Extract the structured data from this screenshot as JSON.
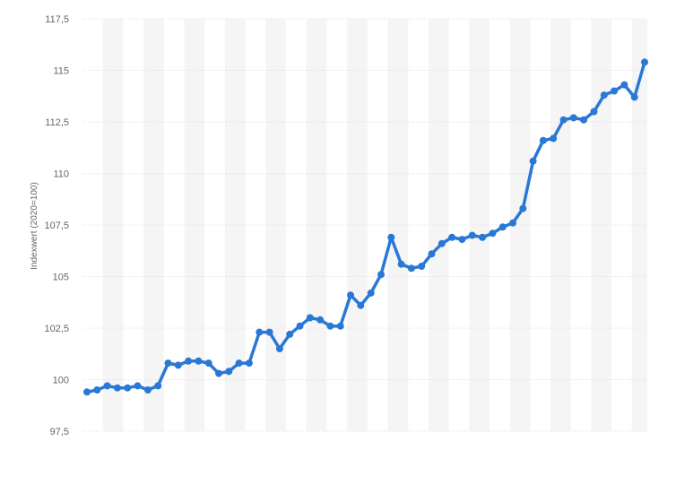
{
  "chart_data": {
    "type": "line",
    "title": "",
    "xlabel": "",
    "ylabel": "Indexwert (2020=100)",
    "ylim": [
      97.5,
      117.5
    ],
    "y_ticks": [
      "117,5",
      "115",
      "112,5",
      "110",
      "107,5",
      "105",
      "102,5",
      "100",
      "97,5"
    ],
    "y_tick_values": [
      117.5,
      115,
      112.5,
      110,
      107.5,
      105,
      102.5,
      100,
      97.5
    ],
    "grid": true,
    "legend": "none",
    "series": [
      {
        "values": [
          99.4,
          99.5,
          99.7,
          99.6,
          99.6,
          99.7,
          99.5,
          99.7,
          100.8,
          100.7,
          100.9,
          100.9,
          100.8,
          100.3,
          100.4,
          100.8,
          100.8,
          102.3,
          102.3,
          101.5,
          102.2,
          102.6,
          103.0,
          102.9,
          102.6,
          102.6,
          104.1,
          103.6,
          104.2,
          105.1,
          106.9,
          105.6,
          105.4,
          105.5,
          106.1,
          106.6,
          106.9,
          106.8,
          107.0,
          106.9,
          107.1,
          107.4,
          107.6,
          108.3,
          110.6,
          111.6,
          111.7,
          112.6,
          112.7,
          112.6,
          113.0,
          113.8,
          114.0,
          114.3,
          113.7,
          115.4
        ]
      }
    ]
  },
  "colors": {
    "line": "#2a78d6",
    "band": "#f5f5f5",
    "grid": "#dddddd",
    "tick_text": "#666666"
  }
}
